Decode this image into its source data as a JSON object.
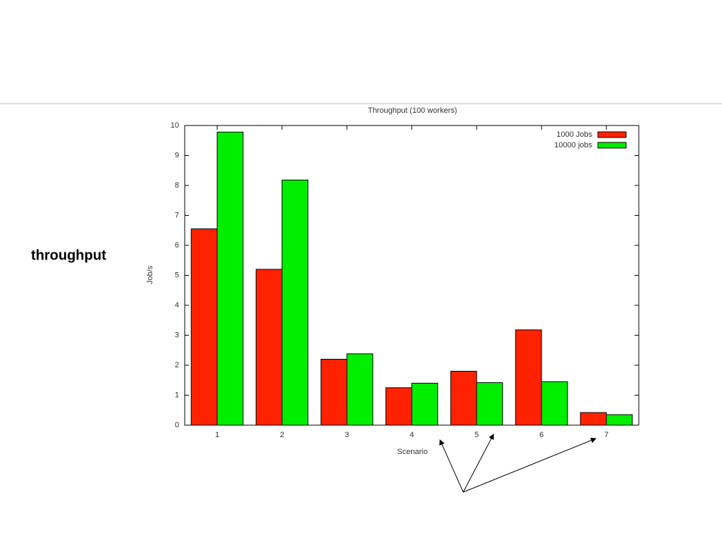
{
  "slide": {
    "label": "throughput"
  },
  "chart_data": {
    "type": "bar",
    "title": "Throughput (100 workers)",
    "x_label": "Scenario",
    "y_label": "Job/s",
    "categories": [
      "1",
      "2",
      "3",
      "4",
      "5",
      "6",
      "7"
    ],
    "series": [
      {
        "name": "1000 Jobs",
        "color": "#ff2200",
        "values": [
          6.55,
          5.2,
          2.2,
          1.25,
          1.8,
          3.18,
          0.42
        ]
      },
      {
        "name": "10000 jobs",
        "color": "#00ee00",
        "values": [
          9.78,
          8.18,
          2.38,
          1.4,
          1.42,
          1.45,
          0.35
        ]
      }
    ],
    "ylim": [
      0,
      10
    ],
    "yticks": [
      0,
      1,
      2,
      3,
      4,
      5,
      6,
      7,
      8,
      9,
      10
    ],
    "grid": false,
    "legend": "top-right"
  }
}
